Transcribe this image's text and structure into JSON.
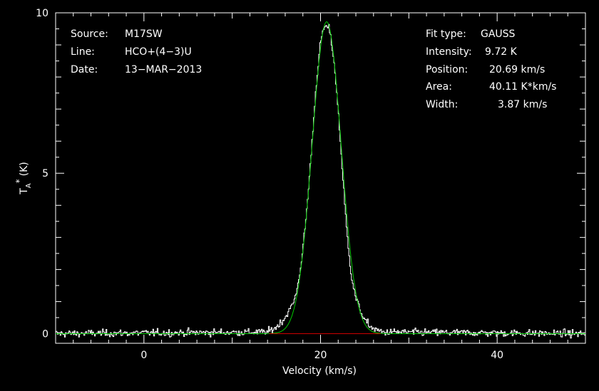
{
  "info_left": [
    {
      "key": "Source:",
      "value": "M17SW"
    },
    {
      "key": "Line:",
      "value": "HCO+(4−3)U"
    },
    {
      "key": "Date:",
      "value": "13−MAR−2013"
    }
  ],
  "info_right": [
    {
      "key": "Fit type:",
      "value": "GAUSS"
    },
    {
      "key": "Intensity:",
      "value": "9.72 K"
    },
    {
      "key": "Position:",
      "value": "20.69 km/s"
    },
    {
      "key": "Area:",
      "value": "40.11 K*km/s"
    },
    {
      "key": "Width:",
      "value": "3.87 km/s"
    }
  ],
  "colors": {
    "background": "#000000",
    "axes": "#ffffff",
    "spectrum": "#ffffff",
    "fit": "#00cc00",
    "baseline": "#cc0000"
  },
  "chart_data": {
    "type": "line",
    "xlabel": "Velocity (km/s)",
    "ylabel": "T",
    "ylabel_sub": "A",
    "ylabel_sup": "*",
    "ylabel_unit": "(K)",
    "xlim": [
      -10,
      50
    ],
    "ylim": [
      -0.3,
      10
    ],
    "xticks": [
      0,
      20,
      40
    ],
    "yticks": [
      0,
      5,
      10
    ],
    "x_tick_labels": [
      "0",
      "20",
      "40"
    ],
    "y_tick_labels": [
      "0",
      "5",
      "10"
    ],
    "grid": false,
    "series": [
      {
        "style": "histogram",
        "x_start": -10,
        "x_step": 0.1,
        "noise_rms": 0.08,
        "x": [
          -10,
          14,
          15,
          16,
          17,
          17.5,
          18,
          18.5,
          19,
          19.5,
          20,
          20.5,
          21,
          21.5,
          22,
          22.5,
          23,
          23.5,
          24,
          25,
          26,
          27,
          50
        ],
        "y": [
          0,
          0.05,
          0.2,
          0.5,
          1.0,
          1.6,
          2.6,
          4.0,
          5.8,
          7.7,
          9.1,
          9.6,
          9.5,
          8.6,
          7.0,
          5.0,
          3.1,
          1.8,
          1.1,
          0.4,
          0.15,
          0.05,
          0
        ]
      },
      {
        "style": "gaussian_fit",
        "amplitude": 9.72,
        "center": 20.69,
        "fwhm": 3.87
      },
      {
        "style": "baseline",
        "x": [
          14.2,
          26.8
        ],
        "y": [
          0,
          0
        ]
      }
    ]
  }
}
